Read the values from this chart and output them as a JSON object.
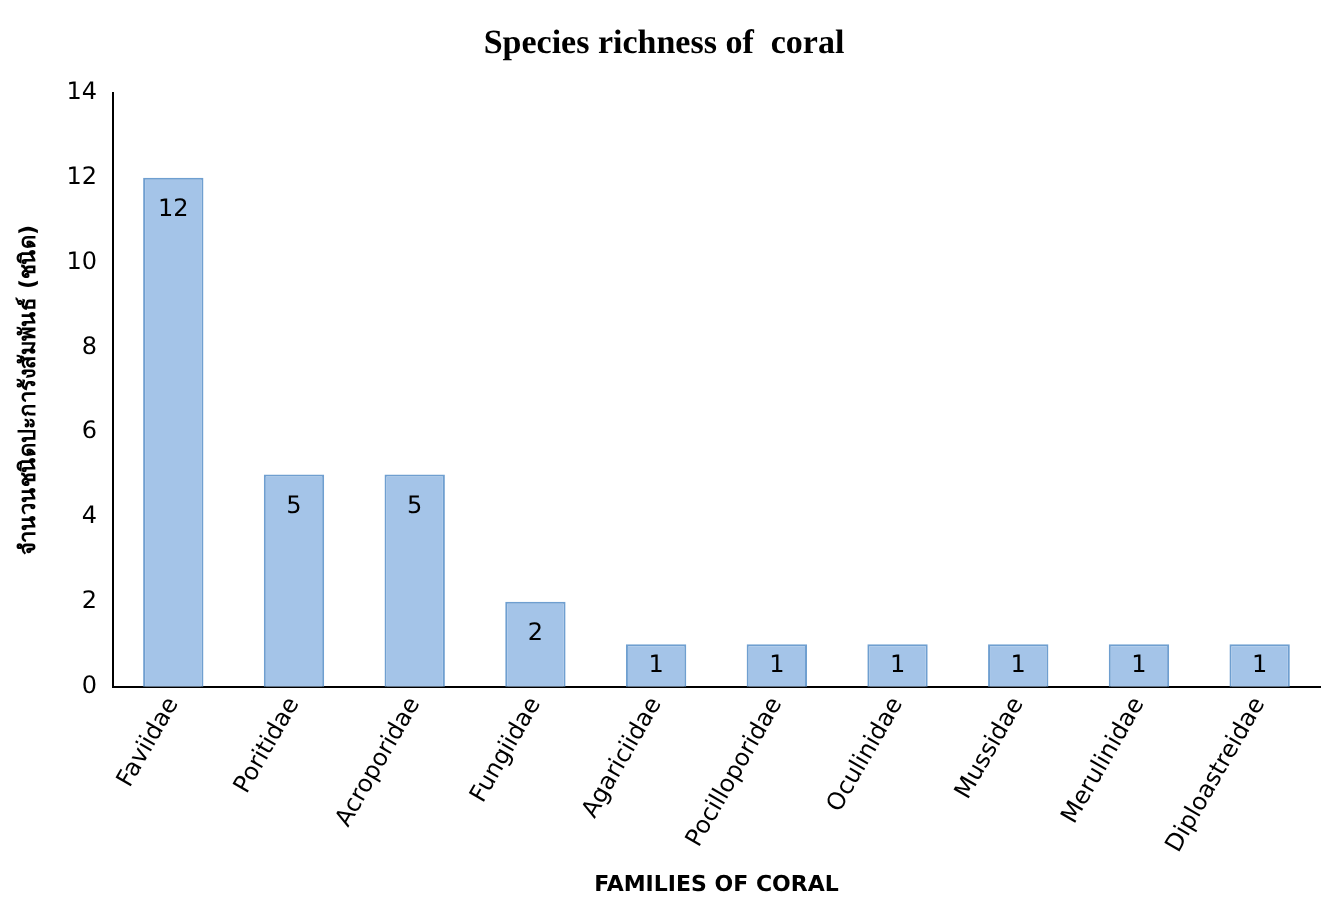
{
  "chart_data": {
    "type": "bar",
    "title": "Species richness of  coral",
    "xlabel": "FAMILIES OF CORAL",
    "ylabel": "จำนวนชนิดปะการังสัมพันธ์ (ชนิด)",
    "categories": [
      "Faviidae",
      "Poritidae",
      "Acroporidae",
      "Fungiidae",
      "Agariciidae",
      "Pocilloporidae",
      "Oculinidae",
      "Mussidae",
      "Merulinidae",
      "Diploastreidae"
    ],
    "values": [
      12,
      5,
      5,
      2,
      1,
      1,
      1,
      1,
      1,
      1
    ],
    "color": "#a4c4e8",
    "ylim": [
      0,
      14
    ],
    "yticks": [
      0,
      2,
      4,
      6,
      8,
      10,
      12,
      14
    ],
    "grid": false,
    "legend": false,
    "data_labels": true
  }
}
